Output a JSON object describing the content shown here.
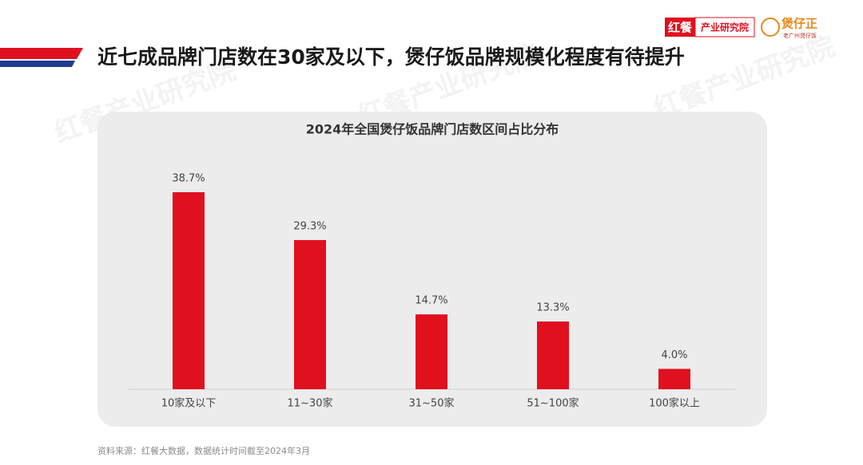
{
  "header": {
    "title": "近七成品牌门店数在30家及以下，煲仔饭品牌规模化程度有待提升",
    "logo_left_brand": "红餐",
    "logo_left_text": "产业研究院",
    "logo_right_brand": "煲仔正",
    "logo_right_sub": "老广州煲仔饭",
    "watermark": "红餐产业研究院"
  },
  "chart_data": {
    "type": "bar",
    "title": "2024年全国煲仔饭品牌门店数区间占比分布",
    "categories": [
      "10家及以下",
      "11~30家",
      "31~50家",
      "51~100家",
      "100家以上"
    ],
    "values": [
      38.7,
      29.3,
      14.7,
      13.3,
      4.0
    ],
    "value_labels": [
      "38.7%",
      "29.3%",
      "14.7%",
      "13.3%",
      "4.0%"
    ],
    "color": "#e0101f"
  },
  "footer": {
    "source": "资料来源：红餐大数据，数据统计时间截至2024年3月"
  }
}
